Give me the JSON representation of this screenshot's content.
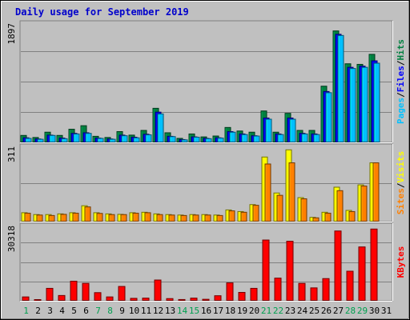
{
  "chart_data": [
    {
      "type": "bar",
      "title": "Daily usage for September 2019",
      "categories": [
        "1",
        "2",
        "3",
        "4",
        "5",
        "6",
        "7",
        "8",
        "9",
        "10",
        "11",
        "12",
        "13",
        "14",
        "15",
        "16",
        "17",
        "18",
        "19",
        "20",
        "21",
        "22",
        "23",
        "24",
        "25",
        "26",
        "27",
        "28",
        "29",
        "30",
        "31"
      ],
      "weekend_days": [
        "1",
        "7",
        "8",
        "14",
        "15",
        "21",
        "22",
        "28",
        "29"
      ],
      "ymax_label": "1897",
      "ylim": [
        0,
        1897
      ],
      "series": [
        {
          "name": "Hits",
          "color": "#008040",
          "values": [
            125,
            90,
            180,
            125,
            230,
            290,
            110,
            90,
            190,
            130,
            210,
            585,
            170,
            75,
            150,
            100,
            115,
            260,
            200,
            180,
            540,
            180,
            500,
            210,
            210,
            960,
            1897,
            1340,
            1330,
            1500,
            0
          ]
        },
        {
          "name": "Files",
          "color": "#0000ff",
          "values": [
            85,
            65,
            130,
            80,
            160,
            170,
            80,
            65,
            130,
            95,
            145,
            520,
            110,
            55,
            100,
            75,
            85,
            190,
            150,
            120,
            420,
            150,
            420,
            160,
            150,
            870,
            1840,
            1280,
            1300,
            1390,
            0
          ]
        },
        {
          "name": "Pages",
          "color": "#00c0ff",
          "values": [
            75,
            60,
            125,
            70,
            150,
            160,
            75,
            60,
            120,
            85,
            135,
            490,
            105,
            50,
            95,
            70,
            80,
            180,
            140,
            115,
            400,
            140,
            400,
            150,
            140,
            850,
            1820,
            1260,
            1280,
            1350,
            0
          ]
        }
      ],
      "right_labels": [
        "Pages",
        "/",
        "Files",
        "/",
        "Hits"
      ],
      "right_label_colors": [
        "#00c0ff",
        "#000000",
        "#0000ff",
        "#000000",
        "#008040"
      ]
    },
    {
      "type": "bar",
      "categories": [
        "1",
        "2",
        "3",
        "4",
        "5",
        "6",
        "7",
        "8",
        "9",
        "10",
        "11",
        "12",
        "13",
        "14",
        "15",
        "16",
        "17",
        "18",
        "19",
        "20",
        "21",
        "22",
        "23",
        "24",
        "25",
        "26",
        "27",
        "28",
        "29",
        "30",
        "31"
      ],
      "ymax_label": "311",
      "ylim": [
        0,
        311
      ],
      "series": [
        {
          "name": "Visits",
          "color": "#ffff00",
          "values": [
            40,
            32,
            32,
            35,
            40,
            70,
            40,
            35,
            33,
            40,
            42,
            35,
            32,
            30,
            32,
            32,
            30,
            52,
            45,
            75,
            280,
            125,
            311,
            105,
            20,
            42,
            150,
            50,
            160,
            255,
            0
          ]
        },
        {
          "name": "Sites",
          "color": "#ff8000",
          "values": [
            38,
            30,
            28,
            33,
            38,
            65,
            37,
            32,
            32,
            38,
            40,
            32,
            30,
            28,
            30,
            30,
            28,
            48,
            42,
            72,
            250,
            115,
            255,
            100,
            18,
            38,
            135,
            45,
            155,
            255,
            0
          ]
        }
      ],
      "right_labels": [
        "Sites",
        "/",
        "Visits"
      ],
      "right_label_colors": [
        "#ff8000",
        "#000000",
        "#ffff00"
      ]
    },
    {
      "type": "bar",
      "categories": [
        "1",
        "2",
        "3",
        "4",
        "5",
        "6",
        "7",
        "8",
        "9",
        "10",
        "11",
        "12",
        "13",
        "14",
        "15",
        "16",
        "17",
        "18",
        "19",
        "20",
        "21",
        "22",
        "23",
        "24",
        "25",
        "26",
        "27",
        "28",
        "29",
        "30",
        "31"
      ],
      "ymax_label": "30318",
      "ylim": [
        0,
        30318
      ],
      "series": [
        {
          "name": "KBytes",
          "color": "#ff0000",
          "values": [
            1800,
            500,
            5400,
            2400,
            8400,
            7500,
            3600,
            1800,
            6200,
            1200,
            1300,
            8900,
            1100,
            700,
            1300,
            800,
            2300,
            7700,
            3700,
            5400,
            25700,
            9700,
            25200,
            7500,
            5600,
            9500,
            29500,
            12600,
            22800,
            30318,
            0
          ]
        }
      ],
      "right_labels": [
        "KBytes"
      ],
      "right_label_colors": [
        "#ff0000"
      ]
    }
  ]
}
